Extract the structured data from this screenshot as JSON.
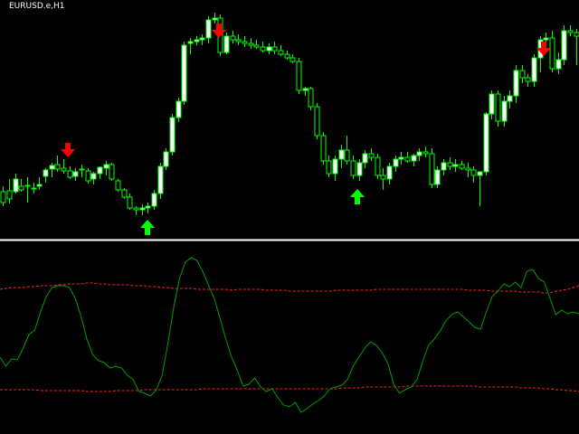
{
  "window": {
    "symbol_timeframe": "EURUSD.e,H1"
  },
  "colors": {
    "background": "#000000",
    "candle_bull_fill": "#ffffff",
    "candle_outline": "#00ff00",
    "separator": "#ffffff",
    "oscillator_line": "#00a000",
    "level_lines": "#ff2020",
    "arrow_sell": "#ff0000",
    "arrow_buy": "#00ff00"
  },
  "icons": {
    "sell": "down-arrow-icon",
    "buy": "up-arrow-icon"
  },
  "chart_data": [
    {
      "type": "candlestick",
      "series": [
        {
          "values": [
            [
              212,
              228,
              206,
              224
            ],
            [
              211,
              225,
              198,
              220
            ],
            [
              212,
              214,
              192,
              198
            ],
            [
              206,
              212,
              198,
              210
            ],
            [
              205,
              224,
              196,
              206
            ],
            [
              208,
              214,
              202,
              209
            ],
            [
              206,
              210,
              196,
              204
            ],
            [
              195,
              202,
              186,
              188
            ],
            [
              187,
              196,
              180,
              183
            ],
            [
              182,
              190,
              172,
              187
            ],
            [
              186,
              192,
              176,
              189
            ],
            [
              189,
              198,
              184,
              196
            ],
            [
              195,
              200,
              186,
              190
            ],
            [
              188,
              196,
              182,
              187
            ],
            [
              189,
              203,
              186,
              200
            ],
            [
              198,
              204,
              190,
              192
            ],
            [
              192,
              198,
              184,
              185
            ],
            [
              186,
              194,
              178,
              182
            ],
            [
              182,
              200,
              180,
              198
            ],
            [
              200,
              212,
              198,
              210
            ],
            [
              210,
              220,
              208,
              218
            ],
            [
              218,
              232,
              214,
              230
            ],
            [
              230,
              238,
              228,
              232
            ],
            [
              232,
              238,
              226,
              230
            ],
            [
              230,
              236,
              224,
              228
            ],
            [
              228,
              232,
              210,
              214
            ],
            [
              214,
              220,
              180,
              184
            ],
            [
              184,
              188,
              164,
              168
            ],
            [
              168,
              172,
              126,
              130
            ],
            [
              130,
              135,
              108,
              112
            ],
            [
              112,
              116,
              46,
              50
            ],
            [
              48,
              60,
              42,
              46
            ],
            [
              46,
              50,
              40,
              44
            ],
            [
              44,
              50,
              38,
              42
            ],
            [
              42,
              48,
              18,
              22
            ],
            [
              22,
              26,
              14,
              20
            ],
            [
              20,
              62,
              16,
              58
            ],
            [
              58,
              60,
              36,
              40
            ],
            [
              40,
              48,
              34,
              44
            ],
            [
              44,
              50,
              38,
              46
            ],
            [
              46,
              52,
              40,
              48
            ],
            [
              48,
              54,
              42,
              50
            ],
            [
              50,
              54,
              44,
              52
            ],
            [
              52,
              58,
              46,
              56
            ],
            [
              56,
              60,
              48,
              52
            ],
            [
              52,
              60,
              46,
              56
            ],
            [
              56,
              62,
              50,
              60
            ],
            [
              60,
              66,
              56,
              64
            ],
            [
              64,
              70,
              60,
              68
            ],
            [
              68,
              104,
              64,
              100
            ],
            [
              100,
              106,
              96,
              98
            ],
            [
              98,
              122,
              96,
              118
            ],
            [
              118,
              154,
              114,
              150
            ],
            [
              150,
              182,
              146,
              178
            ],
            [
              178,
              196,
              172,
              192
            ],
            [
              192,
              200,
              172,
              176
            ],
            [
              176,
              186,
              160,
              166
            ],
            [
              166,
              182,
              150,
              178
            ],
            [
              178,
              198,
              172,
              194
            ],
            [
              194,
              200,
              176,
              180
            ],
            [
              180,
              186,
              166,
              170
            ],
            [
              170,
              178,
              164,
              174
            ],
            [
              174,
              198,
              170,
              194
            ],
            [
              194,
              210,
              186,
              198
            ],
            [
              198,
              204,
              180,
              184
            ],
            [
              184,
              190,
              172,
              176
            ],
            [
              176,
              182,
              168,
              174
            ],
            [
              174,
              180,
              168,
              178
            ],
            [
              178,
              184,
              170,
              172
            ],
            [
              172,
              178,
              164,
              168
            ],
            [
              168,
              174,
              162,
              170
            ],
            [
              170,
              208,
              164,
              204
            ],
            [
              204,
              208,
              184,
              188
            ],
            [
              188,
              194,
              176,
              180
            ],
            [
              180,
              188,
              174,
              184
            ],
            [
              184,
              190,
              176,
              182
            ],
            [
              182,
              188,
              178,
              186
            ],
            [
              186,
              196,
              180,
              188
            ],
            [
              188,
              202,
              184,
              194
            ],
            [
              194,
              228,
              190,
              190
            ],
            [
              190,
              194,
              124,
              126
            ],
            [
              126,
              132,
              100,
              104
            ],
            [
              104,
              140,
              100,
              134
            ],
            [
              134,
              140,
              106,
              112
            ],
            [
              112,
              120,
              100,
              106
            ],
            [
              106,
              114,
              72,
              78
            ],
            [
              78,
              92,
              72,
              86
            ],
            [
              86,
              96,
              82,
              90
            ],
            [
              90,
              96,
              60,
              64
            ],
            [
              64,
              80,
              40,
              44
            ],
            [
              44,
              52,
              36,
              42
            ],
            [
              42,
              80,
              34,
              76
            ],
            [
              76,
              82,
              58,
              66
            ],
            [
              66,
              72,
              28,
              34
            ],
            [
              34,
              40,
              28,
              36
            ],
            [
              36,
              72,
              32,
              40
            ]
          ]
        }
      ]
    },
    {
      "type": "line",
      "series": [
        {
          "values": [
            395,
            405,
            397,
            398,
            385,
            370,
            365,
            345,
            328,
            318,
            316,
            316,
            318,
            330,
            350,
            375,
            392,
            399,
            401,
            407,
            405,
            407,
            415,
            420,
            433,
            435,
            438,
            431,
            415,
            380,
            340,
            308,
            290,
            285,
            288,
            300,
            315,
            330,
            352,
            375,
            395,
            410,
            427,
            425,
            418,
            428,
            433,
            430,
            440,
            448,
            450,
            445,
            456,
            452,
            447,
            443,
            438,
            430,
            428,
            426,
            420,
            405,
            395,
            385,
            378,
            382,
            390,
            402,
            425,
            435,
            431,
            428,
            420,
            400,
            382,
            375,
            366,
            355,
            348,
            345,
            350,
            356,
            362,
            364,
            345,
            328,
            322,
            314,
            317,
            312,
            318,
            300,
            298,
            308,
            312,
            330,
            348,
            343,
            347,
            345,
            347
          ]
        },
        {
          "values": [
            320,
            319,
            318,
            318,
            318,
            317,
            317,
            316,
            316,
            316,
            315,
            315,
            314,
            314,
            314,
            313,
            313,
            314,
            314,
            315,
            315,
            315,
            315,
            316,
            316,
            316,
            317,
            317,
            318,
            318,
            319,
            319,
            319,
            319,
            320,
            320,
            320,
            320,
            320,
            320,
            321,
            320,
            320,
            320,
            320,
            320,
            321,
            321,
            321,
            321,
            322,
            322,
            322,
            322,
            322,
            322,
            322,
            322,
            321,
            321,
            321,
            321,
            321,
            321,
            321,
            320,
            320,
            320,
            320,
            320,
            320,
            320,
            320,
            320,
            320,
            320,
            320,
            320,
            320,
            320,
            320,
            321,
            321,
            321,
            321,
            322,
            322,
            322,
            322,
            322,
            323,
            323,
            323,
            323,
            324,
            324,
            322,
            321,
            320,
            318,
            316
          ]
        },
        {
          "values": [
            431,
            431,
            431,
            431,
            431,
            431,
            431,
            432,
            432,
            432,
            432,
            432,
            432,
            432,
            432,
            433,
            433,
            433,
            433,
            433,
            432,
            432,
            432,
            432,
            432,
            431,
            431,
            431,
            431,
            431,
            431,
            431,
            431,
            431,
            431,
            430,
            430,
            430,
            430,
            430,
            430,
            430,
            430,
            430,
            430,
            430,
            430,
            430,
            430,
            430,
            430,
            430,
            430,
            430,
            430,
            430,
            430,
            430,
            430,
            429,
            429,
            429,
            429,
            428,
            428,
            428,
            428,
            428,
            428,
            428,
            427,
            427,
            427,
            427,
            427,
            427,
            427,
            427,
            427,
            427,
            427,
            427,
            427,
            428,
            428,
            428,
            428,
            428,
            428,
            428,
            429,
            429,
            429,
            429,
            430,
            430,
            431,
            431,
            432,
            432,
            433
          ]
        }
      ]
    }
  ]
}
